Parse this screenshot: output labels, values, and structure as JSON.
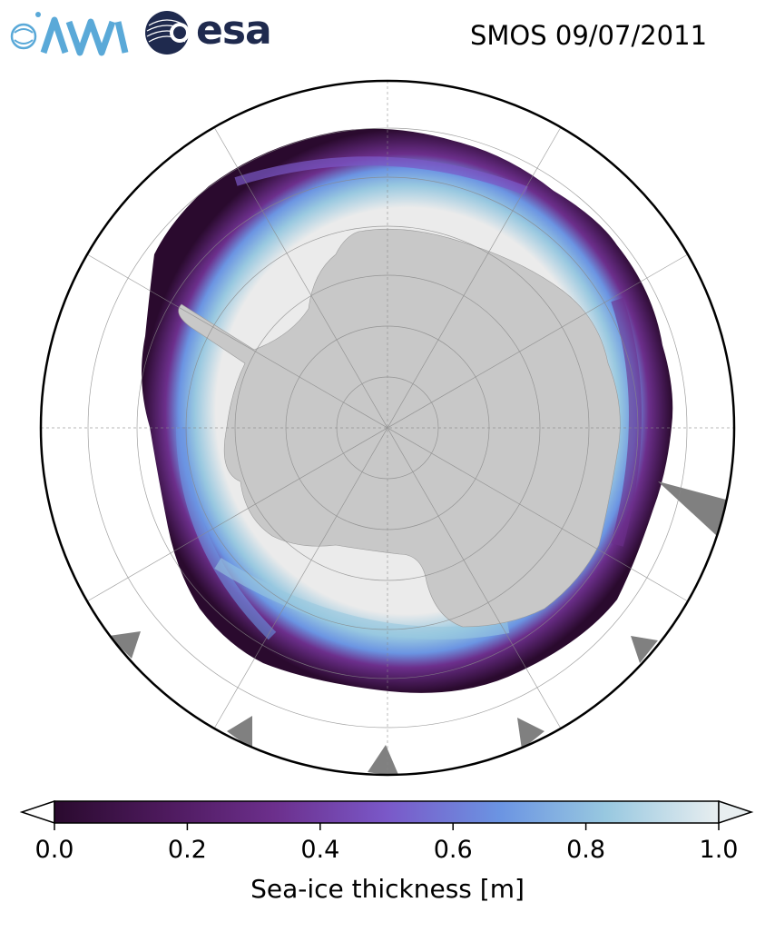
{
  "title": "SMOS 09/07/2011",
  "logos": {
    "awi": "AWI",
    "esa": "esa"
  },
  "colors": {
    "land": "#c8c8c8",
    "thick_ice": "#ebebeb",
    "ocean": "#ffffff",
    "missing": "#808080",
    "graticule": "#888888"
  },
  "colorbar": {
    "label": "Sea-ice thickness [m]",
    "vmin": 0.0,
    "vmax": 1.0,
    "extend": "both",
    "ticks": [
      "0.0",
      "0.2",
      "0.4",
      "0.6",
      "0.8",
      "1.0"
    ],
    "colormap": [
      "#2a0a2e",
      "#4e1a5e",
      "#6c2f8c",
      "#7a58c8",
      "#6b94e2",
      "#98c8e0",
      "#e8eef0"
    ]
  },
  "map": {
    "projection": "south-polar-stereographic",
    "graticule": true
  }
}
